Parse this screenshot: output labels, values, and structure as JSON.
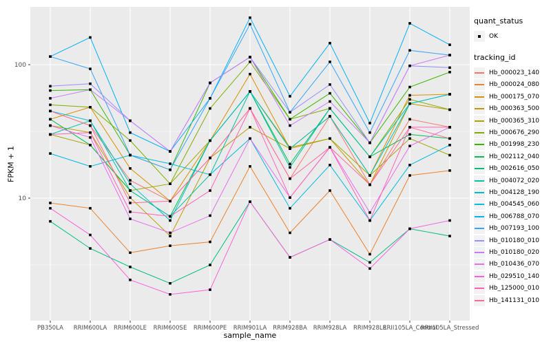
{
  "figure": {
    "background": "#FFFFFF",
    "panel_background": "#EBEBEB",
    "grid_color": "#FFFFFF",
    "tick_color": "#333333",
    "tick_label_color": "#4D4D4D",
    "point_color": "#000000"
  },
  "legend": {
    "quant_status_title": "quant_status",
    "quant_status_value": "OK",
    "tracking_id_title": "tracking_id",
    "key_background": "#F2F2F2"
  },
  "chart_data": {
    "type": "line",
    "title": "",
    "xlabel": "sample_name",
    "ylabel": "FPKM + 1",
    "y_scale": "log10",
    "ylim": [
      1.2,
      275
    ],
    "y_ticks": [
      10,
      100
    ],
    "y_tick_labels": [
      "10",
      "100"
    ],
    "y_minor_ticks": [
      3.162,
      31.623
    ],
    "grid": true,
    "legend_position": "right",
    "point_shape": "small-black-square",
    "categories": [
      "PB350LA",
      "RRIM600LA",
      "RRIM600LE",
      "RRIM600SE",
      "RRIM600PE",
      "RRIM901LA",
      "RRIM928BA",
      "RRIM928LA",
      "RRIM928LE",
      "RRII105LA_Control",
      "RRII105LA_Stressed"
    ],
    "series": [
      {
        "name": "Hb_000023_140",
        "color": "#F8766D",
        "values": [
          45,
          35,
          13.6,
          9.5,
          20,
          47,
          14,
          41,
          12.6,
          39,
          34
        ]
      },
      {
        "name": "Hb_000024_080",
        "color": "#EA8331",
        "values": [
          9.2,
          8.4,
          3.9,
          4.4,
          4.7,
          17.3,
          5.5,
          11.4,
          3.8,
          14.8,
          16.1
        ]
      },
      {
        "name": "Hb_000175_070",
        "color": "#D89000",
        "values": [
          39,
          48,
          16.7,
          9.5,
          27,
          85,
          23.5,
          41,
          14.8,
          59,
          60
        ]
      },
      {
        "name": "Hb_000363_500",
        "color": "#C09B00",
        "values": [
          35,
          31,
          10.1,
          5.2,
          20,
          34,
          23.5,
          28,
          12.6,
          51,
          46
        ]
      },
      {
        "name": "Hb_000365_310",
        "color": "#A3A500",
        "values": [
          30,
          25,
          11.4,
          12.8,
          27,
          63,
          24,
          28,
          14.8,
          28,
          21
        ]
      },
      {
        "name": "Hb_000676_290",
        "color": "#7CAE00",
        "values": [
          50,
          48,
          27,
          12.8,
          47,
          105,
          39,
          47,
          20.4,
          55,
          46
        ]
      },
      {
        "name": "Hb_001998_230",
        "color": "#39B600",
        "values": [
          64,
          65,
          21,
          16.3,
          73,
          114,
          39,
          61,
          26,
          68,
          88
        ]
      },
      {
        "name": "Hb_002112_040",
        "color": "#00BB4E",
        "values": [
          39,
          25,
          11.4,
          7.3,
          27,
          63,
          18,
          47,
          20.4,
          30,
          28
        ]
      },
      {
        "name": "Hb_002616_050",
        "color": "#00BF7D",
        "values": [
          6.7,
          4.2,
          3.05,
          2.3,
          3.16,
          9.4,
          3.6,
          4.9,
          3.3,
          5.9,
          5.2
        ]
      },
      {
        "name": "Hb_004072_020",
        "color": "#00C1A3",
        "values": [
          30,
          38,
          11.4,
          7.3,
          15,
          63,
          17,
          47,
          20.4,
          51,
          60
        ]
      },
      {
        "name": "Hb_004128_190",
        "color": "#00BFC4",
        "values": [
          45,
          38,
          12.8,
          6.8,
          27,
          63,
          23.5,
          41,
          14.8,
          51,
          60
        ]
      },
      {
        "name": "Hb_004545_060",
        "color": "#00BAE0",
        "values": [
          21.6,
          17.3,
          21,
          18.1,
          15,
          28,
          8.4,
          17.7,
          6.8,
          17.7,
          25
        ]
      },
      {
        "name": "Hb_006788_070",
        "color": "#00B0F6",
        "values": [
          115,
          160,
          31,
          22.4,
          56,
          225,
          58,
          145,
          36.5,
          204,
          141
        ]
      },
      {
        "name": "Hb_007193_100",
        "color": "#35A2FF",
        "values": [
          115,
          93,
          21,
          16.3,
          56,
          201,
          44,
          105,
          31,
          128,
          118
        ]
      },
      {
        "name": "Hb_010180_010",
        "color": "#9590FF",
        "values": [
          69,
          72,
          38,
          22.4,
          73,
          114,
          44,
          71,
          26,
          98,
          95
        ]
      },
      {
        "name": "Hb_010180_020",
        "color": "#C77CFF",
        "values": [
          56,
          65,
          38,
          22.4,
          73,
          114,
          35,
          53,
          26,
          98,
          118
        ]
      },
      {
        "name": "Hb_010436_070",
        "color": "#E76BF3",
        "values": [
          35,
          28.5,
          7.0,
          5.5,
          7.4,
          28,
          10.1,
          24,
          7.8,
          24.6,
          34
        ]
      },
      {
        "name": "Hb_029510_140",
        "color": "#FA62DB",
        "values": [
          8.4,
          5.3,
          2.44,
          1.9,
          2.06,
          9.4,
          3.6,
          4.9,
          2.97,
          5.9,
          6.8
        ]
      },
      {
        "name": "Hb_125000_010",
        "color": "#FF62BC",
        "values": [
          30,
          31,
          7.9,
          7.3,
          11.4,
          47,
          10.1,
          24,
          6.8,
          34,
          34
        ]
      },
      {
        "name": "Hb_141131_010",
        "color": "#FF6A98",
        "values": [
          45,
          35,
          9.2,
          9.5,
          20,
          47,
          14,
          24,
          12.6,
          34,
          28
        ]
      }
    ]
  }
}
